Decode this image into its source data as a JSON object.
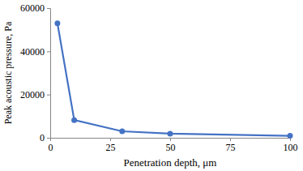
{
  "chart_data": {
    "type": "line",
    "x_label": "Penetration depth, μm",
    "y_label": "Peak acoustic pressure, Pa",
    "x": [
      3,
      10,
      30,
      50,
      100
    ],
    "values": [
      53000,
      8200,
      3000,
      1900,
      900
    ],
    "color": "#4472c4",
    "marker": "circle",
    "xlim": [
      0,
      100
    ],
    "xticks": [
      0,
      25,
      50,
      75,
      100
    ],
    "ylim": [
      0,
      60000
    ],
    "yticks": [
      0,
      20000,
      40000,
      60000
    ],
    "grid": false
  }
}
